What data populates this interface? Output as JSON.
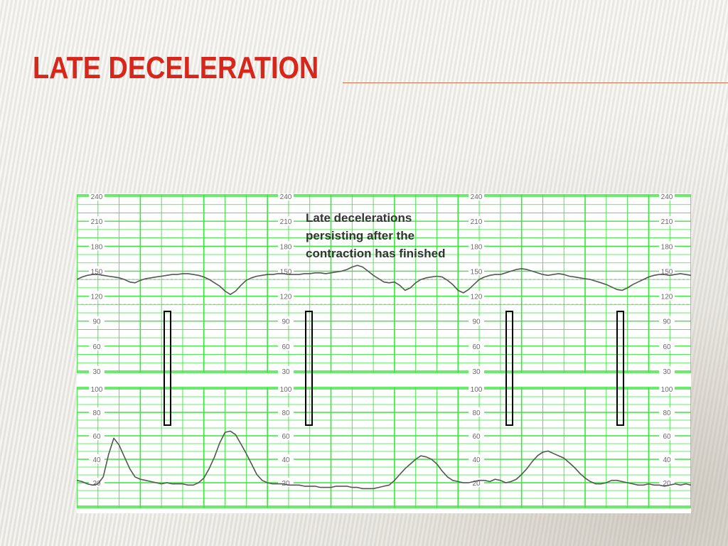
{
  "slide": {
    "title": "LATE DECELERATION",
    "annotation_lines": [
      "Late decelerations",
      "persisting after the",
      "contraction has finished"
    ]
  },
  "colors": {
    "title": "#d8261b",
    "title_rule": "#d2714e",
    "grid": "#39e63a",
    "trace": "#555555",
    "marker": "#000000",
    "background": "#ecebe6"
  },
  "chart_data": [
    {
      "type": "line",
      "panel": "fetal-heart-rate",
      "x": [
        0,
        1,
        2,
        3,
        4,
        5,
        6,
        7,
        8,
        9,
        10,
        11,
        12,
        13,
        14,
        15,
        16,
        17,
        18,
        19,
        20,
        21,
        22,
        23,
        24,
        25,
        26,
        27,
        28,
        29,
        30,
        31,
        32,
        33,
        34,
        35,
        36,
        37,
        38,
        39,
        40,
        41,
        42,
        43,
        44,
        45,
        46,
        47,
        48,
        49,
        50,
        51,
        52,
        53,
        54,
        55,
        56,
        57,
        58,
        59,
        60,
        61,
        62,
        63,
        64,
        65,
        66,
        67,
        68,
        69,
        70,
        71,
        72,
        73,
        74,
        75,
        76,
        77,
        78,
        79,
        80,
        81,
        82,
        83,
        84,
        85,
        86,
        87,
        88,
        89,
        90,
        91,
        92,
        93,
        94,
        95,
        96,
        97,
        98,
        99,
        100,
        101,
        102,
        103,
        104,
        105,
        106,
        107,
        108,
        109,
        110,
        111,
        112,
        113,
        114,
        115,
        116
      ],
      "y": [
        140,
        143,
        145,
        146,
        146,
        145,
        144,
        143,
        142,
        140,
        137,
        136,
        139,
        141,
        142,
        143,
        144,
        145,
        146,
        146,
        147,
        147,
        146,
        145,
        143,
        140,
        136,
        132,
        126,
        122,
        126,
        133,
        139,
        142,
        144,
        145,
        146,
        146,
        147,
        147,
        146,
        146,
        146,
        147,
        147,
        148,
        148,
        147,
        148,
        149,
        150,
        152,
        155,
        157,
        155,
        150,
        145,
        141,
        137,
        136,
        137,
        133,
        127,
        130,
        136,
        140,
        142,
        143,
        144,
        143,
        139,
        134,
        127,
        124,
        128,
        134,
        140,
        143,
        145,
        146,
        146,
        148,
        150,
        152,
        153,
        152,
        150,
        148,
        146,
        145,
        146,
        147,
        146,
        144,
        143,
        142,
        141,
        140,
        138,
        136,
        134,
        131,
        128,
        127,
        130,
        134,
        137,
        140,
        143,
        145,
        146,
        146,
        145,
        146,
        147,
        146,
        145
      ],
      "ylim": [
        30,
        240
      ],
      "ytick_labels": [
        "240",
        "210",
        "180",
        "150",
        "120",
        "90",
        "60",
        "30"
      ]
    },
    {
      "type": "line",
      "panel": "uterine-activity",
      "x": [
        0,
        1,
        2,
        3,
        4,
        5,
        6,
        7,
        8,
        9,
        10,
        11,
        12,
        13,
        14,
        15,
        16,
        17,
        18,
        19,
        20,
        21,
        22,
        23,
        24,
        25,
        26,
        27,
        28,
        29,
        30,
        31,
        32,
        33,
        34,
        35,
        36,
        37,
        38,
        39,
        40,
        41,
        42,
        43,
        44,
        45,
        46,
        47,
        48,
        49,
        50,
        51,
        52,
        53,
        54,
        55,
        56,
        57,
        58,
        59,
        60,
        61,
        62,
        63,
        64,
        65,
        66,
        67,
        68,
        69,
        70,
        71,
        72,
        73,
        74,
        75,
        76,
        77,
        78,
        79,
        80,
        81,
        82,
        83,
        84,
        85,
        86,
        87,
        88,
        89,
        90,
        91,
        92,
        93,
        94,
        95,
        96,
        97,
        98,
        99,
        100,
        101,
        102,
        103,
        104,
        105,
        106,
        107,
        108,
        109,
        110,
        111,
        112,
        113,
        114,
        115,
        116
      ],
      "y": [
        22,
        21,
        19,
        18,
        19,
        25,
        44,
        58,
        52,
        42,
        32,
        25,
        23,
        22,
        21,
        20,
        19,
        20,
        19,
        19,
        19,
        18,
        18,
        20,
        24,
        32,
        42,
        54,
        63,
        64,
        61,
        53,
        45,
        36,
        27,
        22,
        20,
        19,
        19,
        19,
        18,
        18,
        18,
        17,
        17,
        17,
        16,
        16,
        16,
        17,
        17,
        17,
        16,
        16,
        15,
        15,
        15,
        16,
        17,
        18,
        22,
        27,
        32,
        36,
        40,
        43,
        42,
        40,
        36,
        30,
        25,
        22,
        21,
        20,
        20,
        21,
        22,
        22,
        21,
        23,
        22,
        20,
        21,
        23,
        27,
        32,
        38,
        43,
        46,
        47,
        45,
        43,
        41,
        37,
        33,
        28,
        24,
        21,
        19,
        19,
        20,
        22,
        22,
        21,
        20,
        19,
        18,
        18,
        19,
        18,
        18,
        17,
        18,
        19,
        18,
        19,
        18
      ],
      "ylim": [
        0,
        100
      ],
      "ytick_labels": [
        "100",
        "80",
        "60",
        "40",
        "20"
      ]
    }
  ]
}
